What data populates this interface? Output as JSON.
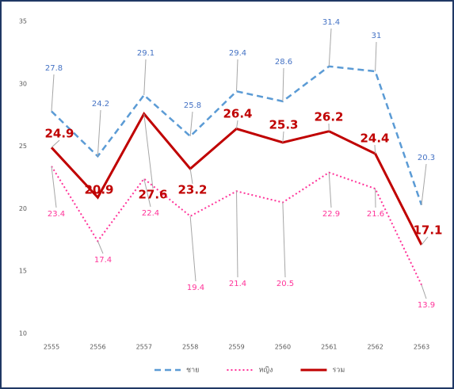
{
  "chart_data": {
    "type": "line",
    "categories": [
      "2555",
      "2556",
      "2557",
      "2558",
      "2559",
      "2560",
      "2561",
      "2562",
      "2563"
    ],
    "series": [
      {
        "name": "ชาย",
        "color": "#5b9bd5",
        "style": "dashed",
        "values": [
          27.8,
          24.2,
          29.1,
          25.8,
          29.4,
          28.6,
          31.4,
          31,
          20.3
        ]
      },
      {
        "name": "หญิง",
        "color": "#ff3399",
        "style": "dotted",
        "values": [
          23.4,
          17.4,
          22.4,
          19.4,
          21.4,
          20.5,
          22.9,
          21.6,
          13.9
        ]
      },
      {
        "name": "รวม",
        "color": "#c00000",
        "style": "solid",
        "values": [
          24.9,
          20.9,
          27.6,
          23.2,
          26.4,
          25.3,
          26.2,
          24.4,
          17.1
        ]
      }
    ],
    "ylim": [
      10,
      35
    ],
    "yticks": [
      10,
      15,
      20,
      25,
      30,
      35
    ],
    "grid": false,
    "legend": "bottom"
  }
}
